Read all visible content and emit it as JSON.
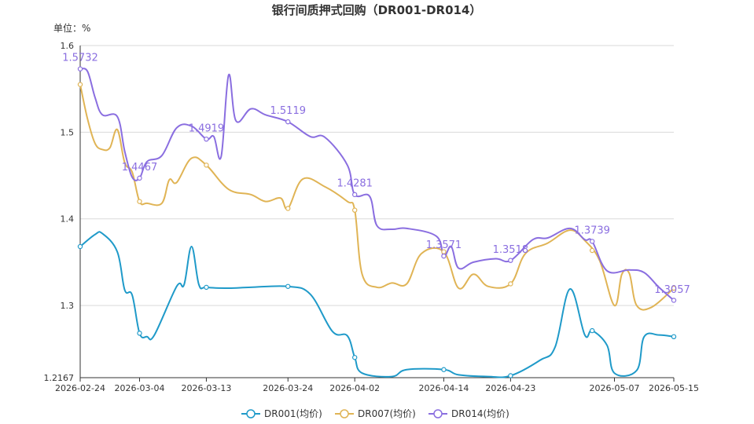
{
  "chart_data": {
    "type": "line",
    "title": "银行间质押式回购（DR001-DR014）",
    "unit_label": "单位：%",
    "ylim": [
      1.2167,
      1.6
    ],
    "y_ticks": [
      1.2167,
      1.3,
      1.4,
      1.5,
      1.6
    ],
    "y_tick_labels": [
      "1.2167",
      "1.3",
      "1.4",
      "1.5",
      "1.6"
    ],
    "x_range": [
      "2026-02-24",
      "2026-05-15"
    ],
    "x_ticks": [
      "2026-02-24",
      "2026-03-04",
      "2026-03-13",
      "2026-03-24",
      "2026-04-02",
      "2026-04-14",
      "2026-04-23",
      "2026-05-07",
      "2026-05-15"
    ],
    "grid": true,
    "legend_position": "bottom-center",
    "series": [
      {
        "name": "DR001(均价)",
        "color": "#1f9ac9",
        "points": [
          [
            "2026-02-24",
            1.368
          ],
          [
            "2026-02-26",
            1.382
          ],
          [
            "2026-02-27",
            1.383
          ],
          [
            "2026-03-01",
            1.362
          ],
          [
            "2026-03-02",
            1.318
          ],
          [
            "2026-03-03",
            1.312
          ],
          [
            "2026-03-04",
            1.268
          ],
          [
            "2026-03-05",
            1.264
          ],
          [
            "2026-03-06",
            1.266
          ],
          [
            "2026-03-09",
            1.322
          ],
          [
            "2026-03-10",
            1.324
          ],
          [
            "2026-03-11",
            1.368
          ],
          [
            "2026-03-12",
            1.324
          ],
          [
            "2026-03-13",
            1.321
          ],
          [
            "2026-03-16",
            1.32
          ],
          [
            "2026-03-19",
            1.321
          ],
          [
            "2026-03-24",
            1.322
          ],
          [
            "2026-03-27",
            1.313
          ],
          [
            "2026-03-30",
            1.27
          ],
          [
            "2026-04-01",
            1.265
          ],
          [
            "2026-04-02",
            1.24
          ],
          [
            "2026-04-03",
            1.222
          ],
          [
            "2026-04-07",
            1.218
          ],
          [
            "2026-04-09",
            1.226
          ],
          [
            "2026-04-14",
            1.226
          ],
          [
            "2026-04-16",
            1.22
          ],
          [
            "2026-04-20",
            1.218
          ],
          [
            "2026-04-23",
            1.219
          ],
          [
            "2026-04-27",
            1.237
          ],
          [
            "2026-04-29",
            1.252
          ],
          [
            "2026-05-01",
            1.319
          ],
          [
            "2026-05-03",
            1.266
          ],
          [
            "2026-05-04",
            1.271
          ],
          [
            "2026-05-06",
            1.254
          ],
          [
            "2026-05-07",
            1.222
          ],
          [
            "2026-05-10",
            1.225
          ],
          [
            "2026-05-11",
            1.264
          ],
          [
            "2026-05-13",
            1.266
          ],
          [
            "2026-05-15",
            1.264
          ]
        ]
      },
      {
        "name": "DR007(均价)",
        "color": "#e0b455",
        "points": [
          [
            "2026-02-24",
            1.555
          ],
          [
            "2026-02-25",
            1.515
          ],
          [
            "2026-02-26",
            1.487
          ],
          [
            "2026-02-27",
            1.48
          ],
          [
            "2026-02-28",
            1.482
          ],
          [
            "2026-03-01",
            1.503
          ],
          [
            "2026-03-02",
            1.465
          ],
          [
            "2026-03-03",
            1.454
          ],
          [
            "2026-03-04",
            1.42
          ],
          [
            "2026-03-05",
            1.418
          ],
          [
            "2026-03-07",
            1.418
          ],
          [
            "2026-03-08",
            1.445
          ],
          [
            "2026-03-09",
            1.442
          ],
          [
            "2026-03-11",
            1.47
          ],
          [
            "2026-03-13",
            1.462
          ],
          [
            "2026-03-16",
            1.434
          ],
          [
            "2026-03-19",
            1.428
          ],
          [
            "2026-03-21",
            1.42
          ],
          [
            "2026-03-23",
            1.424
          ],
          [
            "2026-03-24",
            1.412
          ],
          [
            "2026-03-26",
            1.446
          ],
          [
            "2026-03-29",
            1.437
          ],
          [
            "2026-04-01",
            1.42
          ],
          [
            "2026-04-02",
            1.41
          ],
          [
            "2026-04-03",
            1.336
          ],
          [
            "2026-04-05",
            1.321
          ],
          [
            "2026-04-07",
            1.326
          ],
          [
            "2026-04-09",
            1.325
          ],
          [
            "2026-04-11",
            1.36
          ],
          [
            "2026-04-14",
            1.362
          ],
          [
            "2026-04-16",
            1.32
          ],
          [
            "2026-04-18",
            1.336
          ],
          [
            "2026-04-20",
            1.322
          ],
          [
            "2026-04-23",
            1.325
          ],
          [
            "2026-04-25",
            1.36
          ],
          [
            "2026-04-28",
            1.372
          ],
          [
            "2026-05-01",
            1.387
          ],
          [
            "2026-05-03",
            1.375
          ],
          [
            "2026-05-05",
            1.352
          ],
          [
            "2026-05-07",
            1.3
          ],
          [
            "2026-05-08",
            1.336
          ],
          [
            "2026-05-09",
            1.337
          ],
          [
            "2026-05-10",
            1.3
          ],
          [
            "2026-05-12",
            1.298
          ],
          [
            "2026-05-15",
            1.32
          ]
        ]
      },
      {
        "name": "DR014(均价)",
        "color": "#8a6ee0",
        "points": [
          [
            "2026-02-24",
            1.573
          ],
          [
            "2026-02-25",
            1.57
          ],
          [
            "2026-02-26",
            1.54
          ],
          [
            "2026-02-27",
            1.52
          ],
          [
            "2026-03-01",
            1.518
          ],
          [
            "2026-03-02",
            1.478
          ],
          [
            "2026-03-03",
            1.448
          ],
          [
            "2026-03-04",
            1.447
          ],
          [
            "2026-03-05",
            1.466
          ],
          [
            "2026-03-07",
            1.473
          ],
          [
            "2026-03-09",
            1.505
          ],
          [
            "2026-03-11",
            1.507
          ],
          [
            "2026-03-13",
            1.492
          ],
          [
            "2026-03-14",
            1.495
          ],
          [
            "2026-03-15",
            1.472
          ],
          [
            "2026-03-16",
            1.566
          ],
          [
            "2026-03-17",
            1.513
          ],
          [
            "2026-03-19",
            1.527
          ],
          [
            "2026-03-21",
            1.52
          ],
          [
            "2026-03-24",
            1.512
          ],
          [
            "2026-03-27",
            1.495
          ],
          [
            "2026-03-29",
            1.494
          ],
          [
            "2026-04-01",
            1.462
          ],
          [
            "2026-04-02",
            1.428
          ],
          [
            "2026-04-04",
            1.426
          ],
          [
            "2026-04-05",
            1.392
          ],
          [
            "2026-04-07",
            1.388
          ],
          [
            "2026-04-09",
            1.389
          ],
          [
            "2026-04-13",
            1.38
          ],
          [
            "2026-04-14",
            1.357
          ],
          [
            "2026-04-15",
            1.368
          ],
          [
            "2026-04-16",
            1.343
          ],
          [
            "2026-04-18",
            1.35
          ],
          [
            "2026-04-21",
            1.354
          ],
          [
            "2026-04-23",
            1.352
          ],
          [
            "2026-04-26",
            1.376
          ],
          [
            "2026-04-28",
            1.378
          ],
          [
            "2026-05-01",
            1.389
          ],
          [
            "2026-05-03",
            1.376
          ],
          [
            "2026-05-04",
            1.374
          ],
          [
            "2026-05-06",
            1.34
          ],
          [
            "2026-05-09",
            1.341
          ],
          [
            "2026-05-11",
            1.338
          ],
          [
            "2026-05-13",
            1.321
          ],
          [
            "2026-05-15",
            1.306
          ]
        ]
      }
    ],
    "markers": [
      {
        "series": 0,
        "dates": [
          "2026-02-24",
          "2026-03-04",
          "2026-03-13",
          "2026-03-24",
          "2026-04-02",
          "2026-04-14",
          "2026-04-23",
          "2026-05-04",
          "2026-05-15"
        ]
      },
      {
        "series": 1,
        "dates": [
          "2026-02-24",
          "2026-03-04",
          "2026-03-13",
          "2026-03-24",
          "2026-04-02",
          "2026-04-14",
          "2026-04-23",
          "2026-05-04",
          "2026-05-15"
        ]
      },
      {
        "series": 2,
        "dates": [
          "2026-02-24",
          "2026-03-04",
          "2026-03-13",
          "2026-03-24",
          "2026-04-02",
          "2026-04-14",
          "2026-04-23",
          "2026-05-04",
          "2026-05-15"
        ]
      }
    ],
    "data_labels": [
      {
        "date": "2026-02-24",
        "value": 1.5732,
        "text": "1.5732"
      },
      {
        "date": "2026-03-04",
        "value": 1.4467,
        "text": "1.4467"
      },
      {
        "date": "2026-03-13",
        "value": 1.4919,
        "text": "1.4919"
      },
      {
        "date": "2026-03-24",
        "value": 1.5119,
        "text": "1.5119"
      },
      {
        "date": "2026-04-02",
        "value": 1.4281,
        "text": "1.4281"
      },
      {
        "date": "2026-04-14",
        "value": 1.3571,
        "text": "1.3571"
      },
      {
        "date": "2026-04-23",
        "value": 1.3518,
        "text": "1.3518"
      },
      {
        "date": "2026-05-04",
        "value": 1.3739,
        "text": "1.3739"
      },
      {
        "date": "2026-05-15",
        "value": 1.3057,
        "text": "1.3057"
      }
    ],
    "data_label_color": "#8a6ee0"
  }
}
